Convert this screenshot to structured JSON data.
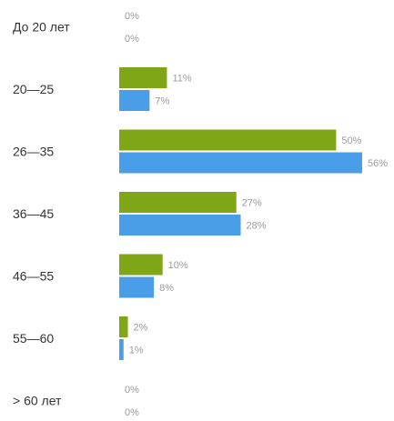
{
  "chart_data": {
    "type": "bar",
    "orientation": "horizontal",
    "categories": [
      "До 20 лет",
      "20—25",
      "26—35",
      "36—45",
      "46—55",
      "55—60",
      "> 60 лет"
    ],
    "series": [
      {
        "values": [
          0,
          11,
          50,
          27,
          10,
          2,
          0
        ],
        "labels": [
          "0%",
          "11%",
          "50%",
          "27%",
          "10%",
          "2%",
          "0%"
        ],
        "color": "#7fa617"
      },
      {
        "values": [
          0,
          7,
          56,
          28,
          8,
          1,
          0
        ],
        "labels": [
          "0%",
          "7%",
          "56%",
          "28%",
          "8%",
          "1%",
          "0%"
        ],
        "color": "#4a9de7"
      }
    ],
    "xlim": [
      0,
      56
    ],
    "grid": false,
    "legend": "none"
  }
}
